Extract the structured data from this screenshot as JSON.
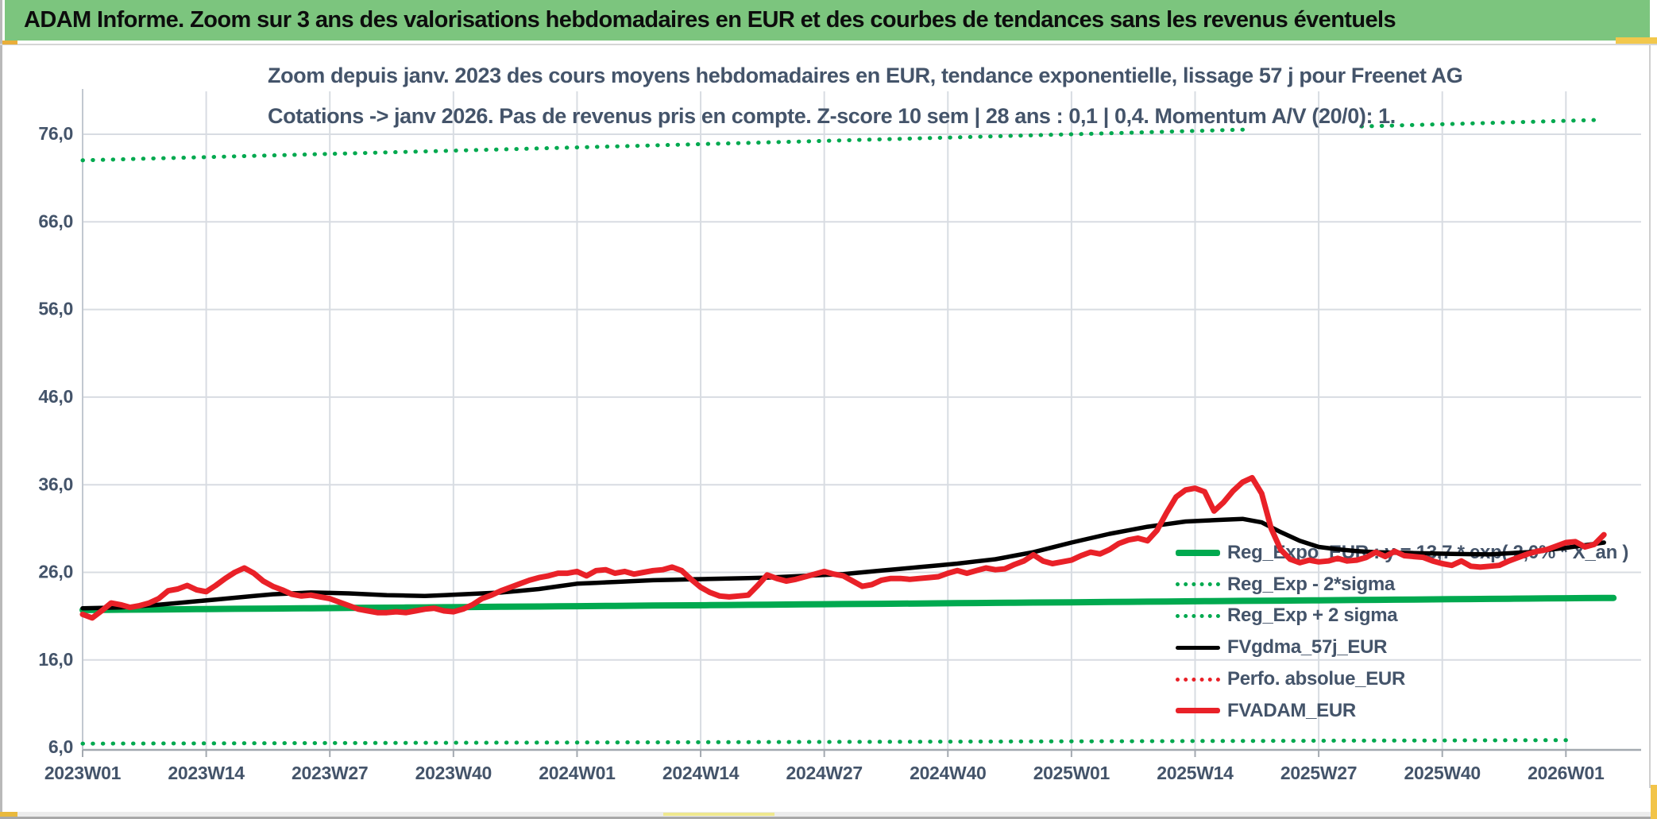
{
  "header": {
    "title": "ADAM Informe. Zoom sur 3 ans des valorisations hebdomadaires en EUR et des courbes de tendances sans les revenus éventuels"
  },
  "chart": {
    "title_line1": "Zoom depuis janv. 2023 des cours moyens hebdomadaires en EUR, tendance exponentielle, lissage 57 j pour Freenet AG",
    "title_line2": "Cotations -> janv 2026. Pas de revenus pris en compte. Z-score 10 sem | 28 ans : 0,1 | 0,4. Momentum A/V (20/0): 1.",
    "colors": {
      "green": "#00a94f",
      "red": "#e92128",
      "black": "#000000",
      "text": "#44546a",
      "gridline": "#d8dce2",
      "axis": "#a3a9b0",
      "y_axis": "#c2c8d0",
      "header_green": "#7cc57e"
    }
  },
  "chart_data": {
    "type": "line",
    "x_index_unit": "weeks since 2023W01",
    "x_tick_labels": [
      "2023W01",
      "2023W14",
      "2023W27",
      "2023W40",
      "2024W01",
      "2024W14",
      "2024W27",
      "2024W40",
      "2025W01",
      "2025W14",
      "2025W27",
      "2025W40",
      "2026W01"
    ],
    "x_tick_week_indices": [
      0,
      13,
      26,
      39,
      52,
      65,
      78,
      91,
      104,
      117,
      130,
      143,
      156
    ],
    "y_tick_labels": [
      "76,0",
      "66,0",
      "56,0",
      "46,0",
      "36,0",
      "26,0",
      "16,0",
      "6,0"
    ],
    "y_tick_values": [
      76,
      66,
      56,
      46,
      36,
      26,
      16,
      6
    ],
    "ylim": [
      6,
      79
    ],
    "grid": true,
    "legend_position": "inside-right",
    "series": [
      {
        "name": "Reg_Expo_EUR : y = 13,7 * exp( 2,0% * X_an )",
        "style": "solid",
        "color_key": "green",
        "width": 8,
        "formula": {
          "a": 13.7,
          "annual_rate": 0.02,
          "x_an_start": 23.0,
          "x_an_end": 26.07
        },
        "segments": [
          [
            0,
            161
          ]
        ]
      },
      {
        "name": "Reg_Exp - 2*sigma",
        "style": "dotted",
        "color_key": "green",
        "width": 5,
        "formula": {
          "a": 13.7,
          "annual_rate": 0.02,
          "x_an_start": 23.0,
          "x_an_end": 26.07
        },
        "factor": 0.2972,
        "segments": [
          [
            0,
            156.5
          ]
        ]
      },
      {
        "name": "Reg_Exp + 2 sigma",
        "style": "dotted",
        "color_key": "green",
        "width": 5,
        "formula": {
          "a": 13.7,
          "annual_rate": 0.02,
          "x_an_start": 23.0,
          "x_an_end": 26.07
        },
        "factor": 3.365,
        "segments": [
          [
            0,
            122.5
          ],
          [
            134.5,
            159.5
          ]
        ]
      },
      {
        "name": "FVgdma_57j_EUR",
        "style": "solid",
        "color_key": "black",
        "width": 5.5,
        "anchors": [
          [
            0,
            21.9
          ],
          [
            4,
            22.0
          ],
          [
            8,
            22.3
          ],
          [
            12,
            22.7
          ],
          [
            16,
            23.1
          ],
          [
            20,
            23.5
          ],
          [
            24,
            23.7
          ],
          [
            28,
            23.6
          ],
          [
            32,
            23.4
          ],
          [
            36,
            23.3
          ],
          [
            40,
            23.5
          ],
          [
            44,
            23.7
          ],
          [
            48,
            24.1
          ],
          [
            52,
            24.7
          ],
          [
            56,
            24.9
          ],
          [
            60,
            25.1
          ],
          [
            64,
            25.2
          ],
          [
            68,
            25.3
          ],
          [
            72,
            25.4
          ],
          [
            76,
            25.6
          ],
          [
            80,
            25.8
          ],
          [
            84,
            26.2
          ],
          [
            88,
            26.6
          ],
          [
            92,
            27.0
          ],
          [
            96,
            27.5
          ],
          [
            100,
            28.3
          ],
          [
            104,
            29.4
          ],
          [
            108,
            30.4
          ],
          [
            112,
            31.2
          ],
          [
            116,
            31.8
          ],
          [
            120,
            32.0
          ],
          [
            122,
            32.1
          ],
          [
            124,
            31.7
          ],
          [
            126,
            30.6
          ],
          [
            128,
            29.6
          ],
          [
            130,
            28.9
          ],
          [
            133,
            28.5
          ],
          [
            136,
            28.3
          ],
          [
            140,
            28.2
          ],
          [
            144,
            28.1
          ],
          [
            148,
            28.05
          ],
          [
            152,
            28.3
          ],
          [
            156,
            28.8
          ],
          [
            160,
            29.4
          ]
        ]
      },
      {
        "name": "Perfo. absolue_EUR",
        "style": "dotted",
        "color_key": "red",
        "width": 5,
        "values_ref": "FVADAM_EUR"
      },
      {
        "name": "FVADAM_EUR",
        "style": "solid",
        "color_key": "red",
        "width": 7,
        "values": [
          21.2,
          20.8,
          21.6,
          22.5,
          22.3,
          22.0,
          22.2,
          22.5,
          23.0,
          23.9,
          24.1,
          24.5,
          24.0,
          23.8,
          24.5,
          25.3,
          26.0,
          26.5,
          25.9,
          25.0,
          24.4,
          24.0,
          23.5,
          23.3,
          23.4,
          23.2,
          23.0,
          22.6,
          22.2,
          21.8,
          21.6,
          21.4,
          21.4,
          21.5,
          21.4,
          21.6,
          21.8,
          21.9,
          21.6,
          21.5,
          21.8,
          22.3,
          23.0,
          23.4,
          23.9,
          24.3,
          24.7,
          25.1,
          25.4,
          25.6,
          25.9,
          25.9,
          26.1,
          25.6,
          26.2,
          26.3,
          25.9,
          26.1,
          25.8,
          26.0,
          26.2,
          26.3,
          26.6,
          26.2,
          25.2,
          24.3,
          23.7,
          23.3,
          23.2,
          23.3,
          23.4,
          24.5,
          25.7,
          25.3,
          25.0,
          25.2,
          25.5,
          25.8,
          26.1,
          25.8,
          25.6,
          25.0,
          24.4,
          24.6,
          25.1,
          25.3,
          25.3,
          25.2,
          25.3,
          25.4,
          25.5,
          25.9,
          26.2,
          25.9,
          26.2,
          26.5,
          26.3,
          26.4,
          26.9,
          27.3,
          28.0,
          27.3,
          27.0,
          27.2,
          27.4,
          27.9,
          28.3,
          28.1,
          28.6,
          29.3,
          29.7,
          29.9,
          29.6,
          30.8,
          32.8,
          34.6,
          35.4,
          35.6,
          35.2,
          33.0,
          34.0,
          35.3,
          36.3,
          36.8,
          35.0,
          31.0,
          28.6,
          27.5,
          27.1,
          27.4,
          27.2,
          27.3,
          27.6,
          27.3,
          27.4,
          27.7,
          28.3,
          27.8,
          28.4,
          27.9,
          27.8,
          27.7,
          27.3,
          27.0,
          26.8,
          27.3,
          26.7,
          26.6,
          26.7,
          26.8,
          27.3,
          27.7,
          28.1,
          28.4,
          28.6,
          29.0,
          29.4,
          29.5,
          28.9,
          29.2,
          30.3
        ]
      }
    ]
  }
}
